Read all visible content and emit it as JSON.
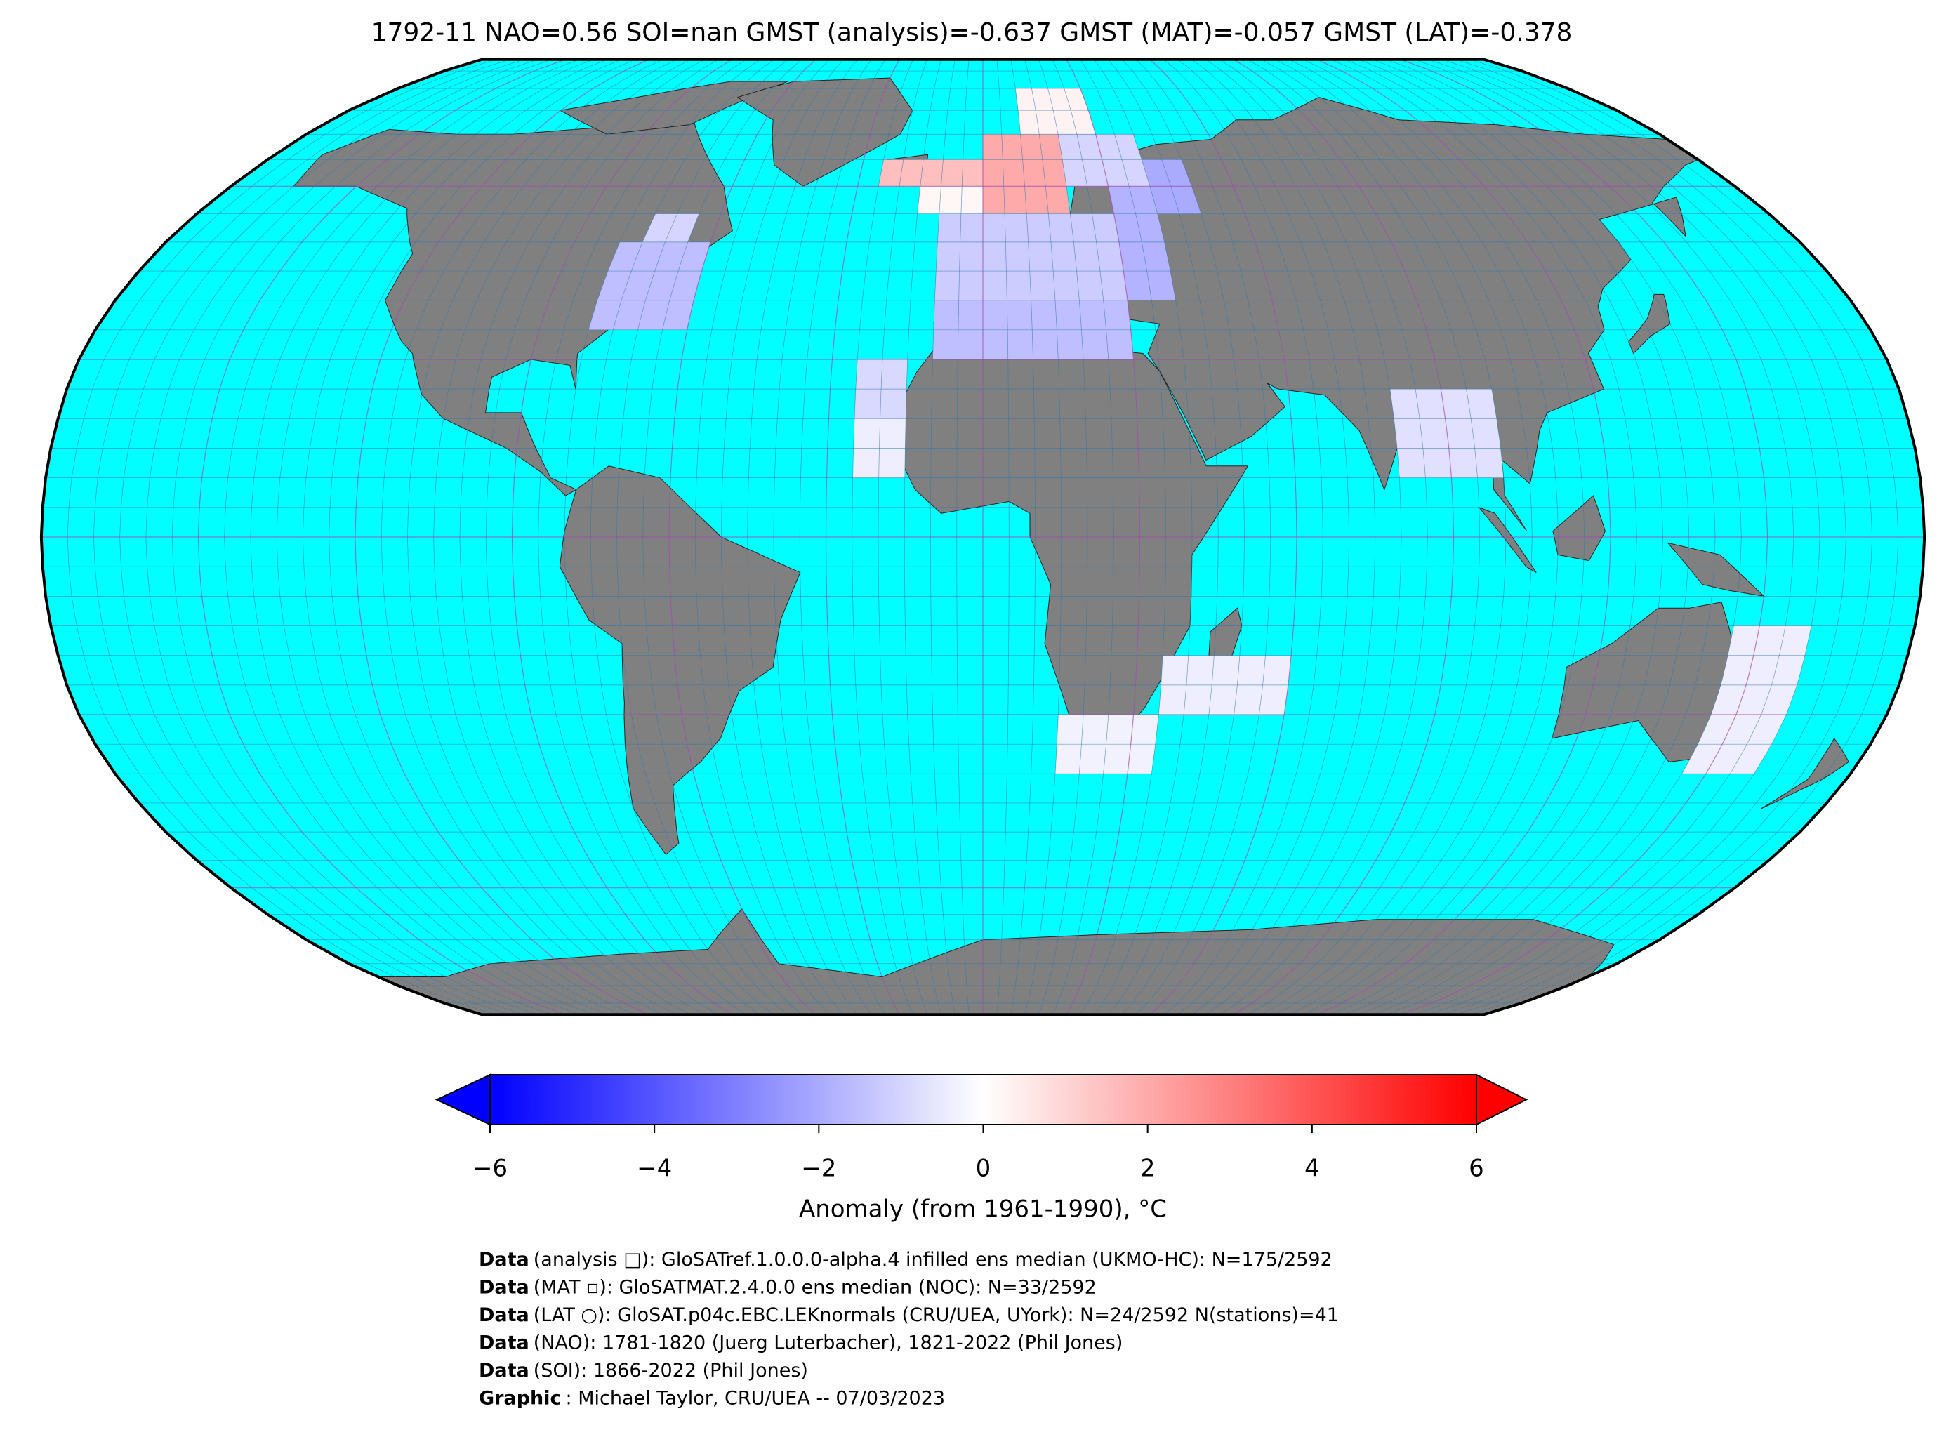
{
  "chart_data": {
    "type": "map",
    "title": "1792-11 NAO=0.56 SOI=nan GMST (analysis)=-0.637 GMST (MAT)=-0.057 GMST (LAT)=-0.378",
    "colorbar_label": "Anomaly (from 1961-1990), °C",
    "clim": [
      -6,
      6
    ],
    "cticks": [
      {
        "value": -6,
        "label": "−6"
      },
      {
        "value": -4,
        "label": "−4"
      },
      {
        "value": -2,
        "label": "−2"
      },
      0,
      2,
      4,
      6
    ],
    "cells": [
      {
        "lon": [
          -80,
          -60
        ],
        "lat": [
          35,
          50
        ],
        "value": -1.5
      },
      {
        "lon": [
          -75,
          -65
        ],
        "lat": [
          50,
          55
        ],
        "value": -1.0
      },
      {
        "lon": [
          -25,
          0
        ],
        "lat": [
          60,
          65
        ],
        "value": 1.5
      },
      {
        "lon": [
          0,
          20
        ],
        "lat": [
          55,
          70
        ],
        "value": 2.0
      },
      {
        "lon": [
          10,
          30
        ],
        "lat": [
          70,
          80
        ],
        "value": 0.3
      },
      {
        "lon": [
          20,
          40
        ],
        "lat": [
          60,
          70
        ],
        "value": -1.0
      },
      {
        "lon": [
          40,
          50
        ],
        "lat": [
          55,
          65
        ],
        "value": -2.0
      },
      {
        "lon": [
          -15,
          0
        ],
        "lat": [
          55,
          60
        ],
        "value": 0.2
      },
      {
        "lon": [
          -10,
          30
        ],
        "lat": [
          40,
          55
        ],
        "value": -1.2
      },
      {
        "lon": [
          30,
          40
        ],
        "lat": [
          40,
          60
        ],
        "value": -1.8
      },
      {
        "lon": [
          -10,
          30
        ],
        "lat": [
          30,
          40
        ],
        "value": -1.5
      },
      {
        "lon": [
          -25,
          -15
        ],
        "lat": [
          20,
          30
        ],
        "value": -0.9
      },
      {
        "lon": [
          -25,
          -15
        ],
        "lat": [
          10,
          20
        ],
        "value": -0.4
      },
      {
        "lon": [
          80,
          100
        ],
        "lat": [
          10,
          25
        ],
        "value": -0.7
      },
      {
        "lon": [
          15,
          35
        ],
        "lat": [
          -40,
          -30
        ],
        "value": -0.3
      },
      {
        "lon": [
          35,
          60
        ],
        "lat": [
          -30,
          -20
        ],
        "value": -0.4
      },
      {
        "lon": [
          145,
          160
        ],
        "lat": [
          -40,
          -15
        ],
        "value": -0.4
      }
    ],
    "notes": [
      {
        "label": "Data",
        "text": "(analysis □): GloSATref.1.0.0.0-alpha.4 infilled ens median (UKMO-HC): N=175/2592"
      },
      {
        "label": "Data",
        "text": "(MAT ▫): GloSATMAT.2.4.0.0 ens median (NOC): N=33/2592"
      },
      {
        "label": "Data",
        "text": "(LAT ○): GloSAT.p04c.EBC.LEKnormals (CRU/UEA, UYork): N=24/2592 N(stations)=41"
      },
      {
        "label": "Data",
        "text": "(NAO): 1781-1820 (Juerg Luterbacher), 1821-2022 (Phil Jones)"
      },
      {
        "label": "Data",
        "text": "(SOI): 1866-2022 (Phil Jones)"
      },
      {
        "label": "Graphic",
        "text": ": Michael Taylor, CRU/UEA -- 07/03/2023"
      }
    ]
  }
}
